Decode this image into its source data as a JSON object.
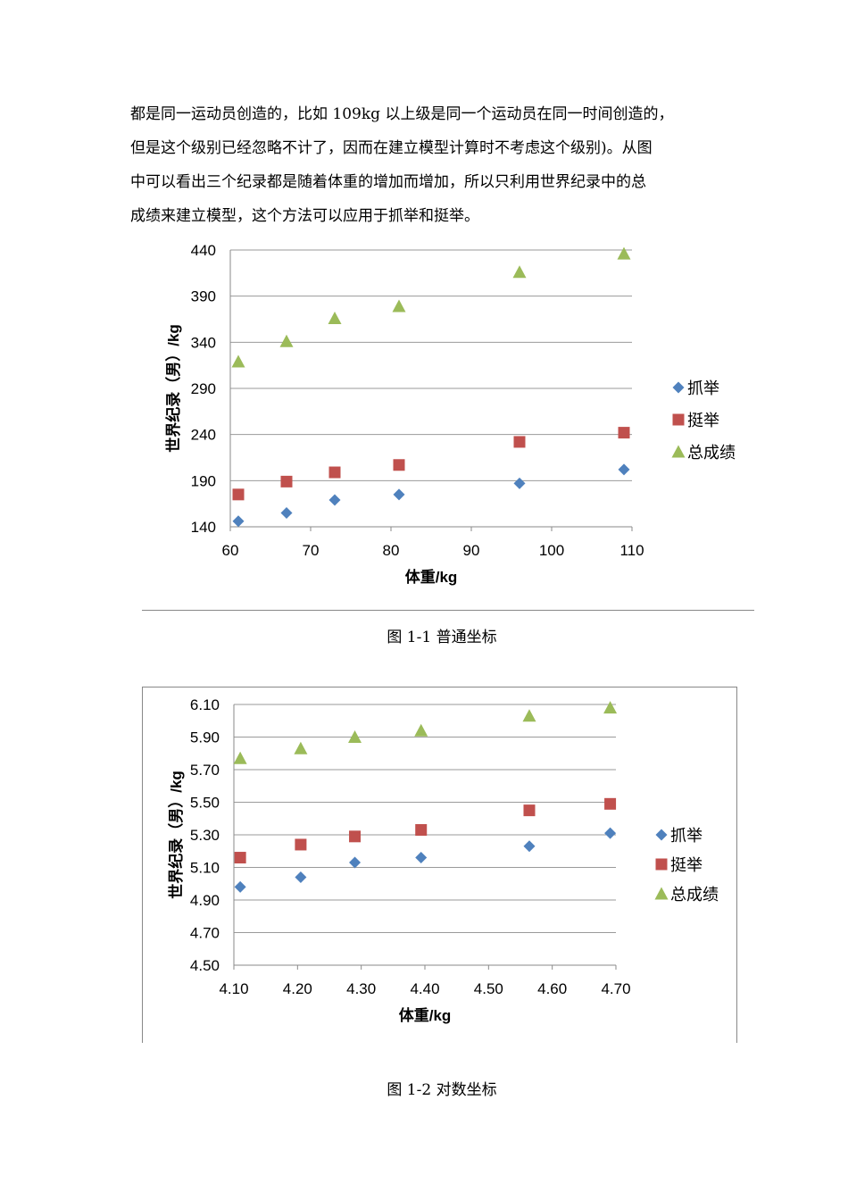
{
  "paragraph": {
    "lines": [
      "都是同一运动员创造的，比如 109kg 以上级是同一个运动员在同一时间创造的，",
      "但是这个级别已经忽略不计了，因而在建立模型计算时不考虑这个级别)。从图",
      "中可以看出三个纪录都是随着体重的增加而增加，所以只利用世界纪录中的总",
      "成绩来建立模型，这个方法可以应用于抓举和挺举。"
    ]
  },
  "captions": {
    "fig1": "图 1-1 普通坐标",
    "fig2": "图 1-2 对数坐标"
  },
  "chart_data": [
    {
      "type": "scatter",
      "xlabel": "体重/kg",
      "ylabel": "世界纪录（男）/kg",
      "xlim": [
        60,
        110
      ],
      "ylim": [
        140,
        440
      ],
      "xticks": [
        "60",
        "70",
        "80",
        "90",
        "100",
        "110"
      ],
      "yticks": [
        "140",
        "190",
        "240",
        "290",
        "340",
        "390",
        "440"
      ],
      "grid": "horizontal",
      "legend_position": "right",
      "series": [
        {
          "name": "抓举",
          "marker": "diamond",
          "color": "#4F81BD",
          "x": [
            61,
            67,
            73,
            81,
            96,
            109
          ],
          "y": [
            146,
            155,
            169,
            175,
            187,
            202
          ]
        },
        {
          "name": "挺举",
          "marker": "square",
          "color": "#C0504D",
          "x": [
            61,
            67,
            73,
            81,
            96,
            109
          ],
          "y": [
            175,
            189,
            199,
            207,
            232,
            242
          ]
        },
        {
          "name": "总成绩",
          "marker": "triangle",
          "color": "#9BBB59",
          "x": [
            61,
            67,
            73,
            81,
            96,
            109
          ],
          "y": [
            319,
            341,
            366,
            379,
            416,
            436
          ]
        }
      ]
    },
    {
      "type": "scatter",
      "xlabel": "体重/kg",
      "ylabel": "世界纪录（男）/kg",
      "xlim": [
        4.1,
        4.7
      ],
      "ylim": [
        4.5,
        6.1
      ],
      "xticks": [
        "4.10",
        "4.20",
        "4.30",
        "4.40",
        "4.50",
        "4.60",
        "4.70"
      ],
      "yticks": [
        "4.50",
        "4.70",
        "4.90",
        "5.10",
        "5.30",
        "5.50",
        "5.70",
        "5.90",
        "6.10"
      ],
      "grid": "horizontal",
      "legend_position": "right",
      "series": [
        {
          "name": "抓举",
          "marker": "diamond",
          "color": "#4F81BD",
          "x": [
            4.11,
            4.205,
            4.29,
            4.394,
            4.564,
            4.691
          ],
          "y": [
            4.98,
            5.04,
            5.13,
            5.16,
            5.23,
            5.31
          ]
        },
        {
          "name": "挺举",
          "marker": "square",
          "color": "#C0504D",
          "x": [
            4.11,
            4.205,
            4.29,
            4.394,
            4.564,
            4.691
          ],
          "y": [
            5.16,
            5.24,
            5.29,
            5.33,
            5.45,
            5.49
          ]
        },
        {
          "name": "总成绩",
          "marker": "triangle",
          "color": "#9BBB59",
          "x": [
            4.11,
            4.205,
            4.29,
            4.394,
            4.564,
            4.691
          ],
          "y": [
            5.77,
            5.83,
            5.9,
            5.94,
            6.03,
            6.08
          ]
        }
      ]
    }
  ]
}
